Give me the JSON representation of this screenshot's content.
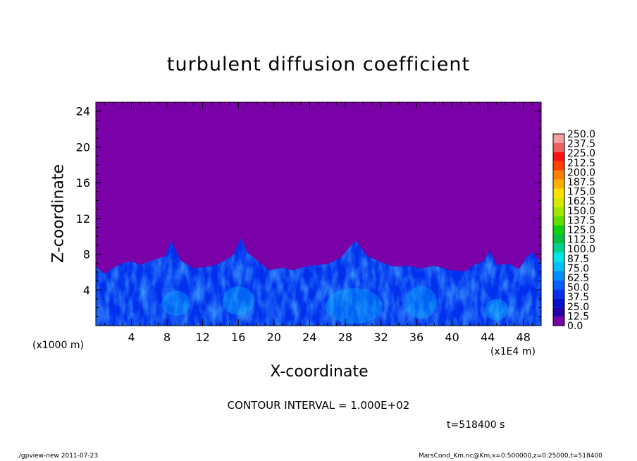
{
  "chart_data": {
    "type": "heatmap",
    "title": "turbulent diffusion coefficient",
    "xlabel": "X-coordinate",
    "ylabel": "Z-coordinate",
    "x_unit": "(x1E4 m)",
    "y_unit": "(x1000 m)",
    "xlim": [
      0,
      50
    ],
    "ylim": [
      0,
      25
    ],
    "x_ticks": [
      "4",
      "8",
      "12",
      "16",
      "20",
      "24",
      "28",
      "32",
      "36",
      "40",
      "44",
      "48"
    ],
    "y_ticks": [
      "4",
      "8",
      "12",
      "16",
      "20",
      "24"
    ],
    "colorbar_levels": [
      "0.0",
      "12.5",
      "25.0",
      "37.5",
      "50.0",
      "62.5",
      "75.0",
      "87.5",
      "100.0",
      "112.5",
      "125.0",
      "137.5",
      "150.0",
      "162.5",
      "175.0",
      "187.5",
      "200.0",
      "212.5",
      "225.0",
      "237.5",
      "250.0"
    ],
    "colorbar_colors": [
      "#7a00a8",
      "#2200aa",
      "#0010cc",
      "#0030ee",
      "#0060ff",
      "#0090ff",
      "#00c0ff",
      "#00e6e6",
      "#00d090",
      "#00c040",
      "#10d010",
      "#60e000",
      "#a0e800",
      "#d8e800",
      "#ffe000",
      "#ffb000",
      "#ff8000",
      "#ff4000",
      "#ff1010",
      "#f06060",
      "#f4a0a0"
    ],
    "background_value_color": "#7a00a8",
    "turbulent_layer_top_profile": {
      "x": [
        0,
        1,
        2,
        3,
        4,
        5,
        6,
        7,
        7.8,
        8.5,
        9.5,
        11,
        12.5,
        13.5,
        14.5,
        15.5,
        16.3,
        17,
        18,
        19.5,
        21,
        22,
        24,
        26,
        27.5,
        28.5,
        29.2,
        30.5,
        32,
        33.5,
        35,
        36.5,
        38,
        40,
        41.5,
        42.5,
        43.5,
        44.2,
        45,
        46.5,
        47.5,
        48.3,
        49,
        50
      ],
      "z": [
        6.6,
        5.8,
        6.5,
        7.0,
        7.2,
        6.8,
        7.2,
        7.5,
        7.8,
        9.5,
        7.3,
        6.4,
        6.6,
        6.8,
        7.3,
        8.0,
        9.8,
        8.2,
        7.4,
        6.2,
        6.5,
        6.2,
        6.7,
        6.9,
        7.6,
        8.8,
        9.5,
        7.8,
        7.1,
        6.6,
        6.7,
        6.4,
        6.7,
        6.2,
        6.1,
        6.8,
        7.2,
        8.4,
        6.8,
        6.9,
        6.3,
        7.6,
        8.2,
        7.0
      ]
    },
    "annotations": {
      "contour_interval": "CONTOUR INTERVAL = 1.000E+02",
      "time": "t=518400 s",
      "footer_left": "./gpview-new   2011-07-23",
      "footer_right": "MarsCond_Km.nc@Km,x=0:500000,z=0:25000,t=518400"
    },
    "grid": false,
    "legend": "colorbar-right"
  }
}
